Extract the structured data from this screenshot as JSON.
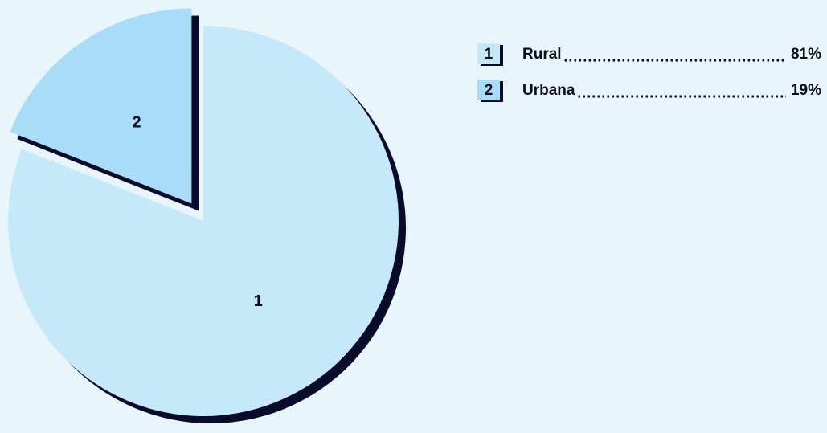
{
  "chart_data": {
    "type": "pie",
    "categories": [
      "Rural",
      "Urbana"
    ],
    "values": [
      81,
      19
    ],
    "value_labels": [
      "81%",
      "19%"
    ],
    "markers": [
      "1",
      "2"
    ],
    "colors": [
      "#c6e9f9",
      "#a9ddf7"
    ],
    "shadow_color": "#0a0a2a"
  }
}
